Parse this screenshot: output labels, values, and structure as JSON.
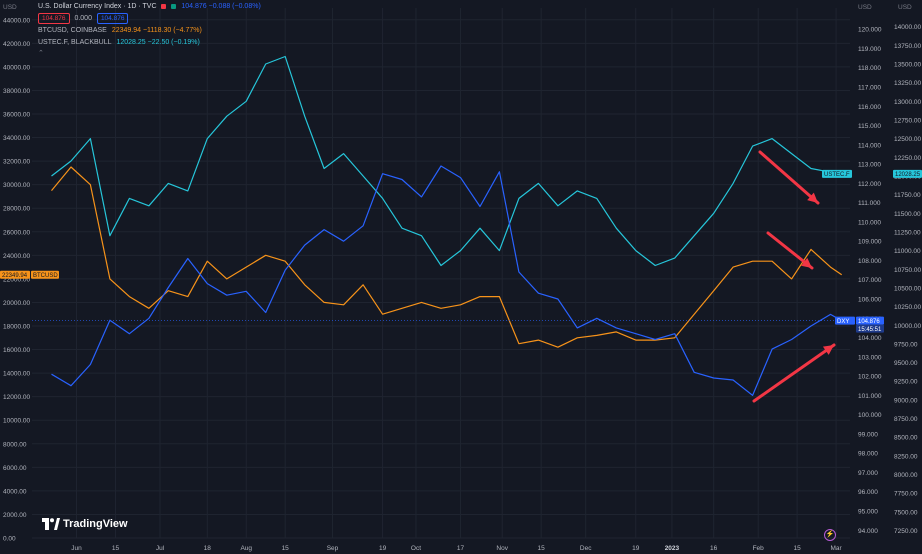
{
  "header": {
    "title": "U.S. Dollar Currency Index · 1D · TVC",
    "title_value": "104.876  −0.088 (−0.08%)",
    "sell_price": "104.876",
    "spread": "0.000",
    "buy_price": "104.876",
    "series2_label": "BTCUSD, COINBASE",
    "series2_value": "22349.94  −1118.30 (−4.77%)",
    "series3_label": "USTEC.F, BLACKBULL",
    "series3_value": "12028.25  −22.50 (−0.19%)",
    "menu_glyph": "⌃",
    "left_axis_unit": "USD",
    "right_axis_unit_1": "USD",
    "right_axis_unit_2": "USD"
  },
  "brand": {
    "name": "TradingView"
  },
  "colors": {
    "background": "#141823",
    "dxy": "#2962ff",
    "btc": "#f7931a",
    "ustec": "#26c6da",
    "annotation_arrow": "#f23645",
    "grid": "#1f2430",
    "axis_text": "#b2b5be"
  },
  "chart_data": {
    "type": "line",
    "x_ticks": [
      "Jun",
      "15",
      "Jul",
      "18",
      "Aug",
      "15",
      "Sep",
      "19",
      "Oct",
      "17",
      "Nov",
      "15",
      "Dec",
      "19",
      "2023",
      "16",
      "Feb",
      "15",
      "Mar"
    ],
    "axes": {
      "btc": {
        "side": "left",
        "ylim": [
          0,
          45000
        ],
        "ticks": [
          0,
          2000,
          4000,
          6000,
          8000,
          10000,
          12000,
          14000,
          16000,
          18000,
          20000,
          22000,
          24000,
          26000,
          28000,
          30000,
          32000,
          34000,
          36000,
          38000,
          40000,
          42000,
          44000
        ]
      },
      "dxy": {
        "side": "right-inner",
        "ylim": [
          93.6,
          121.1
        ],
        "ticks": [
          94.0,
          95.0,
          96.0,
          97.0,
          98.0,
          99.0,
          100.0,
          101.0,
          102.0,
          103.0,
          104.0,
          105.0,
          106.0,
          107.0,
          108.0,
          109.0,
          110.0,
          111.0,
          112.0,
          113.0,
          114.0,
          115.0,
          116.0,
          117.0,
          118.0,
          119.0,
          120.0
        ]
      },
      "ustec": {
        "side": "right-outer",
        "ylim": [
          7150,
          14250
        ],
        "ticks": [
          7250,
          7500,
          7750,
          8000,
          8250,
          8500,
          8750,
          9000,
          9250,
          9500,
          9750,
          10000,
          10250,
          10500,
          10750,
          11000,
          11250,
          11500,
          11750,
          12000,
          12250,
          12500,
          12750,
          13000,
          13250,
          13500,
          13750,
          14000
        ]
      }
    },
    "series": [
      {
        "name": "DXY",
        "label": "DXY",
        "axis": "dxy",
        "last_value": "104.876",
        "countdown": "15:45:51",
        "x": [
          "2022-05-23",
          "2022-05-30",
          "2022-06-06",
          "2022-06-13",
          "2022-06-20",
          "2022-06-27",
          "2022-07-04",
          "2022-07-11",
          "2022-07-18",
          "2022-07-25",
          "2022-08-01",
          "2022-08-08",
          "2022-08-15",
          "2022-08-22",
          "2022-08-29",
          "2022-09-05",
          "2022-09-12",
          "2022-09-19",
          "2022-09-26",
          "2022-10-03",
          "2022-10-10",
          "2022-10-17",
          "2022-10-24",
          "2022-10-31",
          "2022-11-07",
          "2022-11-14",
          "2022-11-21",
          "2022-11-28",
          "2022-12-05",
          "2022-12-12",
          "2022-12-19",
          "2022-12-26",
          "2023-01-02",
          "2023-01-09",
          "2023-01-16",
          "2023-01-23",
          "2023-01-30",
          "2023-02-06",
          "2023-02-13",
          "2023-02-20",
          "2023-02-27",
          "2023-03-03"
        ],
        "y": [
          102.1,
          101.5,
          102.6,
          104.9,
          104.2,
          105.0,
          106.6,
          108.1,
          106.8,
          106.2,
          106.4,
          105.3,
          107.5,
          108.8,
          109.6,
          109.0,
          109.8,
          112.5,
          112.2,
          111.3,
          112.9,
          112.3,
          110.8,
          112.6,
          107.4,
          106.3,
          106.0,
          104.5,
          105.0,
          104.5,
          104.2,
          103.9,
          104.2,
          102.2,
          101.9,
          101.8,
          101.0,
          103.4,
          103.9,
          104.6,
          105.2,
          104.876
        ]
      },
      {
        "name": "BTCUSD",
        "label": "BTCUSD",
        "axis": "btc",
        "last_value": "22349.94",
        "x": [
          "2022-05-23",
          "2022-05-30",
          "2022-06-06",
          "2022-06-13",
          "2022-06-20",
          "2022-06-27",
          "2022-07-04",
          "2022-07-11",
          "2022-07-18",
          "2022-07-25",
          "2022-08-01",
          "2022-08-08",
          "2022-08-15",
          "2022-08-22",
          "2022-08-29",
          "2022-09-05",
          "2022-09-12",
          "2022-09-19",
          "2022-09-26",
          "2022-10-03",
          "2022-10-10",
          "2022-10-17",
          "2022-10-24",
          "2022-10-31",
          "2022-11-07",
          "2022-11-14",
          "2022-11-21",
          "2022-11-28",
          "2022-12-05",
          "2022-12-12",
          "2022-12-19",
          "2022-12-26",
          "2023-01-02",
          "2023-01-09",
          "2023-01-16",
          "2023-01-23",
          "2023-01-30",
          "2023-02-06",
          "2023-02-13",
          "2023-02-20",
          "2023-02-27",
          "2023-03-03"
        ],
        "y": [
          29500,
          31500,
          30000,
          22000,
          20500,
          19500,
          21000,
          20500,
          23500,
          22000,
          23000,
          24000,
          23500,
          21500,
          20000,
          19800,
          21500,
          19000,
          19500,
          20000,
          19500,
          19800,
          20500,
          20500,
          16500,
          16800,
          16200,
          17000,
          17200,
          17500,
          16800,
          16800,
          17000,
          19000,
          21000,
          23000,
          23500,
          23500,
          22000,
          24500,
          23000,
          22349.94
        ]
      },
      {
        "name": "USTEC.F",
        "label": "USTEC.F",
        "axis": "ustec",
        "last_value": "12028.25",
        "x": [
          "2022-05-23",
          "2022-05-30",
          "2022-06-06",
          "2022-06-13",
          "2022-06-20",
          "2022-06-27",
          "2022-07-04",
          "2022-07-11",
          "2022-07-18",
          "2022-07-25",
          "2022-08-01",
          "2022-08-08",
          "2022-08-15",
          "2022-08-22",
          "2022-08-29",
          "2022-09-05",
          "2022-09-12",
          "2022-09-19",
          "2022-09-26",
          "2022-10-03",
          "2022-10-10",
          "2022-10-17",
          "2022-10-24",
          "2022-10-31",
          "2022-11-07",
          "2022-11-14",
          "2022-11-21",
          "2022-11-28",
          "2022-12-05",
          "2022-12-12",
          "2022-12-19",
          "2022-12-26",
          "2023-01-02",
          "2023-01-09",
          "2023-01-16",
          "2023-01-23",
          "2023-01-30",
          "2023-02-06",
          "2023-02-13",
          "2023-02-20",
          "2023-02-27",
          "2023-03-03"
        ],
        "y": [
          12000,
          12200,
          12500,
          11200,
          11700,
          11600,
          11900,
          11800,
          12500,
          12800,
          13000,
          13500,
          13600,
          12800,
          12100,
          12300,
          12000,
          11700,
          11300,
          11200,
          10800,
          11000,
          11300,
          11000,
          11700,
          11900,
          11600,
          11800,
          11700,
          11300,
          11000,
          10800,
          10900,
          11200,
          11500,
          11900,
          12400,
          12500,
          12300,
          12100,
          12050,
          12028.25
        ]
      }
    ]
  }
}
